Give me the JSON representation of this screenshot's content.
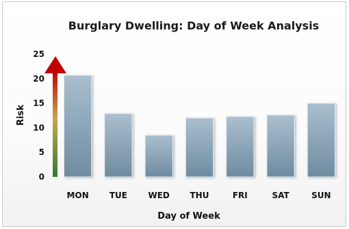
{
  "chart_data": {
    "type": "bar",
    "title": "Burglary Dwelling: Day of Week Analysis",
    "xlabel": "Day of Week",
    "ylabel": "Risk",
    "categories": [
      "MON",
      "TUE",
      "WED",
      "THU",
      "FRI",
      "SAT",
      "SUN"
    ],
    "values": [
      20.7,
      12.9,
      8.5,
      12.0,
      12.3,
      12.6,
      15.0
    ],
    "ylim": [
      0,
      25
    ],
    "yticks": [
      0,
      5,
      10,
      15,
      20,
      25
    ],
    "grid": false,
    "legend": "none"
  },
  "colors": {
    "bar_top": "#a9bfcf",
    "bar_bottom": "#6f8ba0",
    "arrow_bottom": "#2f7d32",
    "arrow_mid": "#c9a74a",
    "arrow_top": "#c00000"
  }
}
